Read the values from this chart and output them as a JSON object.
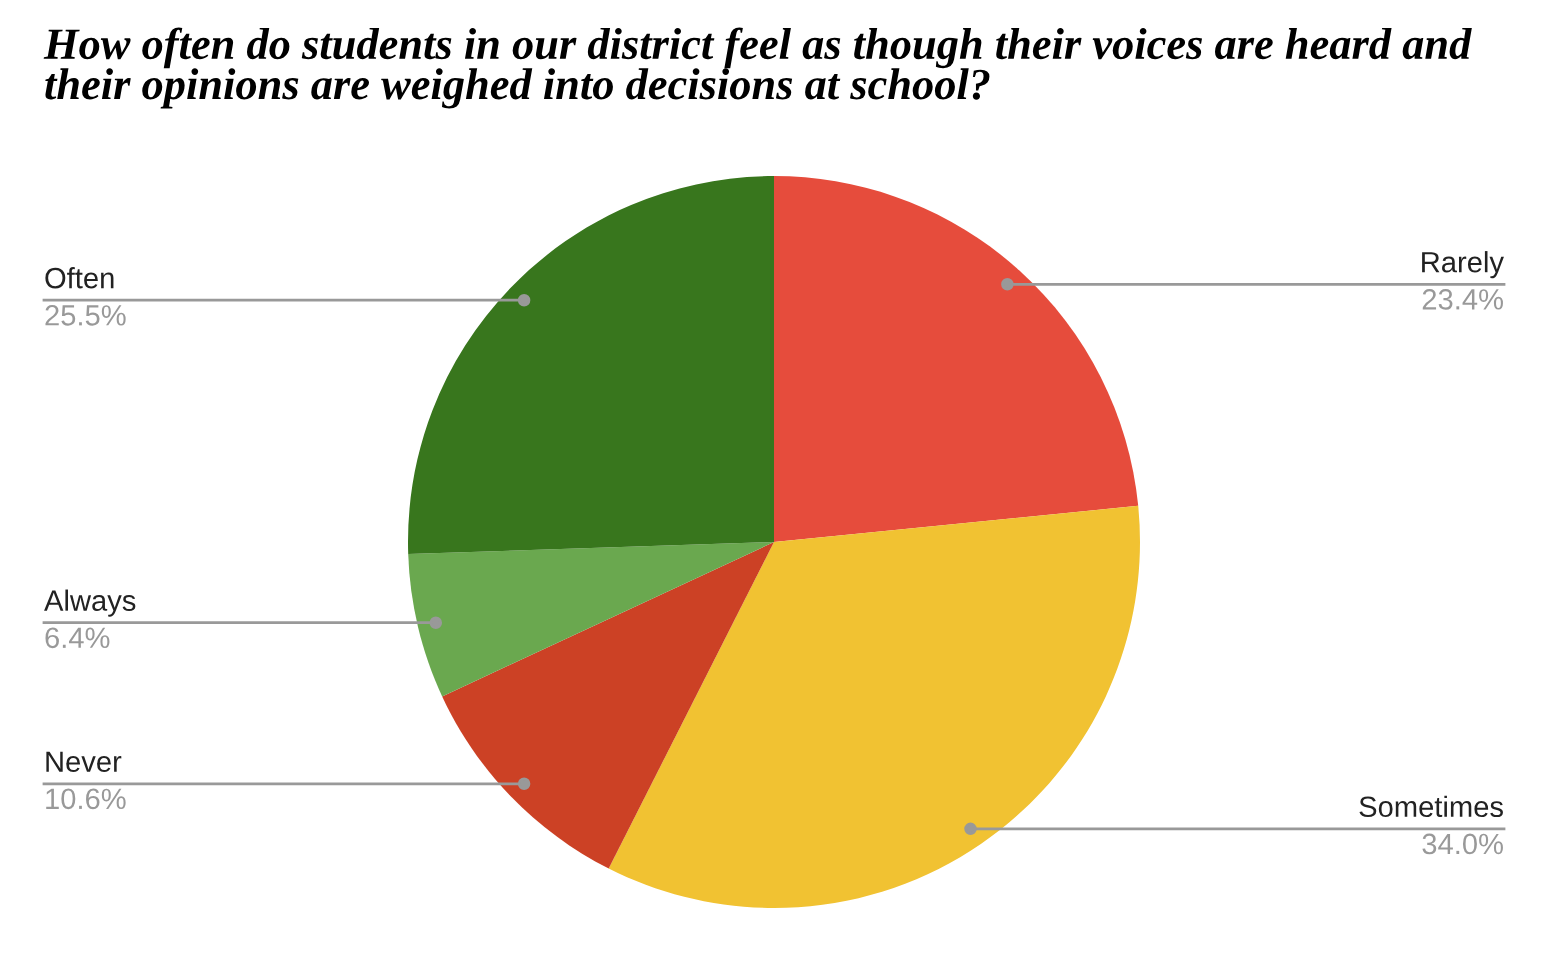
{
  "chart_data": {
    "type": "pie",
    "title": "How often do students in our district feel as though their voices are heard and their opinions are weighed into decisions at school?",
    "categories": [
      "Rarely",
      "Sometimes",
      "Never",
      "Always",
      "Often"
    ],
    "values": [
      23.4,
      34.0,
      10.6,
      6.4,
      25.5
    ],
    "colors": [
      "#e64c3c",
      "#f1c232",
      "#cc4125",
      "#6aa84f",
      "#38761d"
    ],
    "value_labels": [
      "23.4%",
      "34.0%",
      "10.6%",
      "6.4%",
      "25.5%"
    ],
    "legend": false
  }
}
